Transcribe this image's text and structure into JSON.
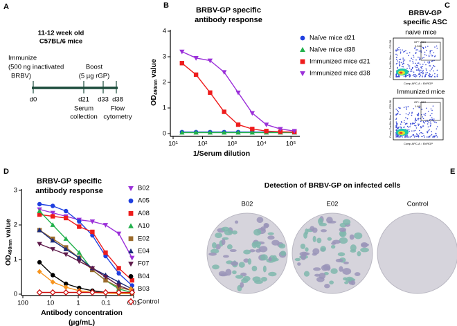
{
  "panels": [
    "A",
    "B",
    "C",
    "D",
    "E"
  ],
  "timeline": {
    "header": [
      "11-12 week old",
      "C57BL/6 mice"
    ],
    "immunize": [
      "Immunize",
      "(500 ng inactivated",
      "BRBV)"
    ],
    "boost": [
      "Boost",
      "(5 µg rGP)"
    ],
    "days": [
      "d0",
      "d21",
      "d33",
      "d38"
    ],
    "serum": [
      "Serum",
      "collection"
    ],
    "flow": [
      "Flow",
      "cytometry"
    ]
  },
  "flow_panel": {
    "title": [
      "BRBV-GP",
      "specific ASC"
    ],
    "groups": [
      "naive mice",
      "Immunized mice"
    ],
    "gate": "GP+ ASC",
    "percent": [
      "0.510",
      "1.69"
    ],
    "y_axis": "Comp PacBlu Blue-A :: CD138",
    "x_axis": "Comp APC-A :: BVRGP"
  },
  "plates": {
    "title": "Detection of BRBV-GP on infected cells",
    "labels": [
      "B02",
      "E02",
      "Control"
    ]
  },
  "chart_data": [
    {
      "type": "line",
      "title": [
        "BRBV-GP specific",
        "antibody response"
      ],
      "ylabel": [
        "OD",
        "490nm",
        " value"
      ],
      "xlabel": [
        "1/Serum dilution"
      ],
      "log_x": true,
      "xlim": [
        10,
        200000
      ],
      "xticks": [
        {
          "value": 10,
          "label": "10¹"
        },
        {
          "value": 100,
          "label": "10²"
        },
        {
          "value": 1000,
          "label": "10³"
        },
        {
          "value": 10000,
          "label": "10⁴"
        },
        {
          "value": 100000,
          "label": "10⁵"
        }
      ],
      "ylim": [
        0,
        4
      ],
      "yticks": [
        0,
        1,
        2,
        3,
        4
      ],
      "x": [
        20,
        60,
        180,
        540,
        1620,
        4860,
        14580,
        43740,
        131220
      ],
      "series": [
        {
          "name": "Naïve mice d21",
          "color": "#1f3fe0",
          "marker": "circle",
          "values": [
            0.06,
            0.06,
            0.06,
            0.06,
            0.06,
            0.06,
            0.06,
            0.06,
            0.06
          ]
        },
        {
          "name": "Naïve mice d38",
          "color": "#22b14c",
          "marker": "triangle",
          "values": [
            0.04,
            0.04,
            0.04,
            0.04,
            0.04,
            0.04,
            0.04,
            0.04,
            0.04
          ]
        },
        {
          "name": "Immunized mice d21",
          "color": "#ee1c1c",
          "marker": "square",
          "values": [
            2.75,
            2.3,
            1.6,
            0.85,
            0.35,
            0.18,
            0.1,
            0.07,
            0.06
          ]
        },
        {
          "name": "Immunized mice d38",
          "color": "#9b30d9",
          "marker": "triangle-down",
          "values": [
            3.2,
            2.95,
            2.85,
            2.4,
            1.6,
            0.8,
            0.35,
            0.18,
            0.1
          ]
        }
      ]
    },
    {
      "type": "line",
      "title": [
        "BRBV-GP specific",
        "antibody response"
      ],
      "ylabel": [
        "OD",
        "490nm",
        " value"
      ],
      "xlabel": [
        "Antibody concentration",
        "(µg/mL)"
      ],
      "log_x": true,
      "xlim": [
        100,
        0.01
      ],
      "xticks": [
        100,
        10,
        1,
        0.1,
        0.01
      ],
      "ylim": [
        0,
        3
      ],
      "yticks": [
        0,
        1,
        2,
        3
      ],
      "x": [
        25,
        8.33,
        2.78,
        0.926,
        0.309,
        0.103,
        0.0343,
        0.0114
      ],
      "series": [
        {
          "name": "B02",
          "color": "#9b30d9",
          "marker": "triangle-down",
          "values": [
            2.45,
            2.35,
            2.25,
            2.15,
            2.1,
            2.0,
            1.75,
            1.05
          ]
        },
        {
          "name": "A05",
          "color": "#1f3fe0",
          "marker": "circle",
          "values": [
            2.6,
            2.55,
            2.4,
            2.1,
            1.7,
            1.1,
            0.6,
            0.25
          ]
        },
        {
          "name": "A08",
          "color": "#ee1c1c",
          "marker": "square",
          "values": [
            2.3,
            2.25,
            2.2,
            1.95,
            1.8,
            1.2,
            0.75,
            0.4
          ]
        },
        {
          "name": "A10",
          "color": "#22b14c",
          "marker": "triangle",
          "values": [
            2.4,
            2.0,
            1.6,
            1.2,
            0.7,
            0.4,
            0.15,
            0.05
          ]
        },
        {
          "name": "E02",
          "color": "#9c6b2b",
          "marker": "square",
          "values": [
            1.85,
            1.6,
            1.35,
            1.05,
            0.7,
            0.4,
            0.2,
            0.1
          ]
        },
        {
          "name": "E04",
          "color": "#1a2a7a",
          "marker": "triangle",
          "values": [
            1.85,
            1.55,
            1.3,
            1.05,
            0.75,
            0.55,
            0.35,
            0.15
          ]
        },
        {
          "name": "F07",
          "color": "#5e1a4a",
          "marker": "triangle-down",
          "values": [
            1.45,
            1.3,
            1.15,
            0.95,
            0.75,
            0.5,
            0.25,
            0.1
          ]
        },
        {
          "name": "B04",
          "color": "#000000",
          "marker": "circle",
          "values": [
            0.92,
            0.55,
            0.3,
            0.18,
            0.1,
            0.05,
            0.03,
            0.02
          ]
        },
        {
          "name": "B03",
          "color": "#f7941d",
          "marker": "diamond",
          "values": [
            0.65,
            0.35,
            0.2,
            0.1,
            0.05,
            0.03,
            0.02,
            0.02
          ]
        },
        {
          "name": "Control",
          "color": "#cc1111",
          "marker": "open-diamond",
          "values": [
            0.05,
            0.05,
            0.05,
            0.05,
            0.05,
            0.05,
            0.05,
            0.05
          ]
        }
      ]
    }
  ]
}
